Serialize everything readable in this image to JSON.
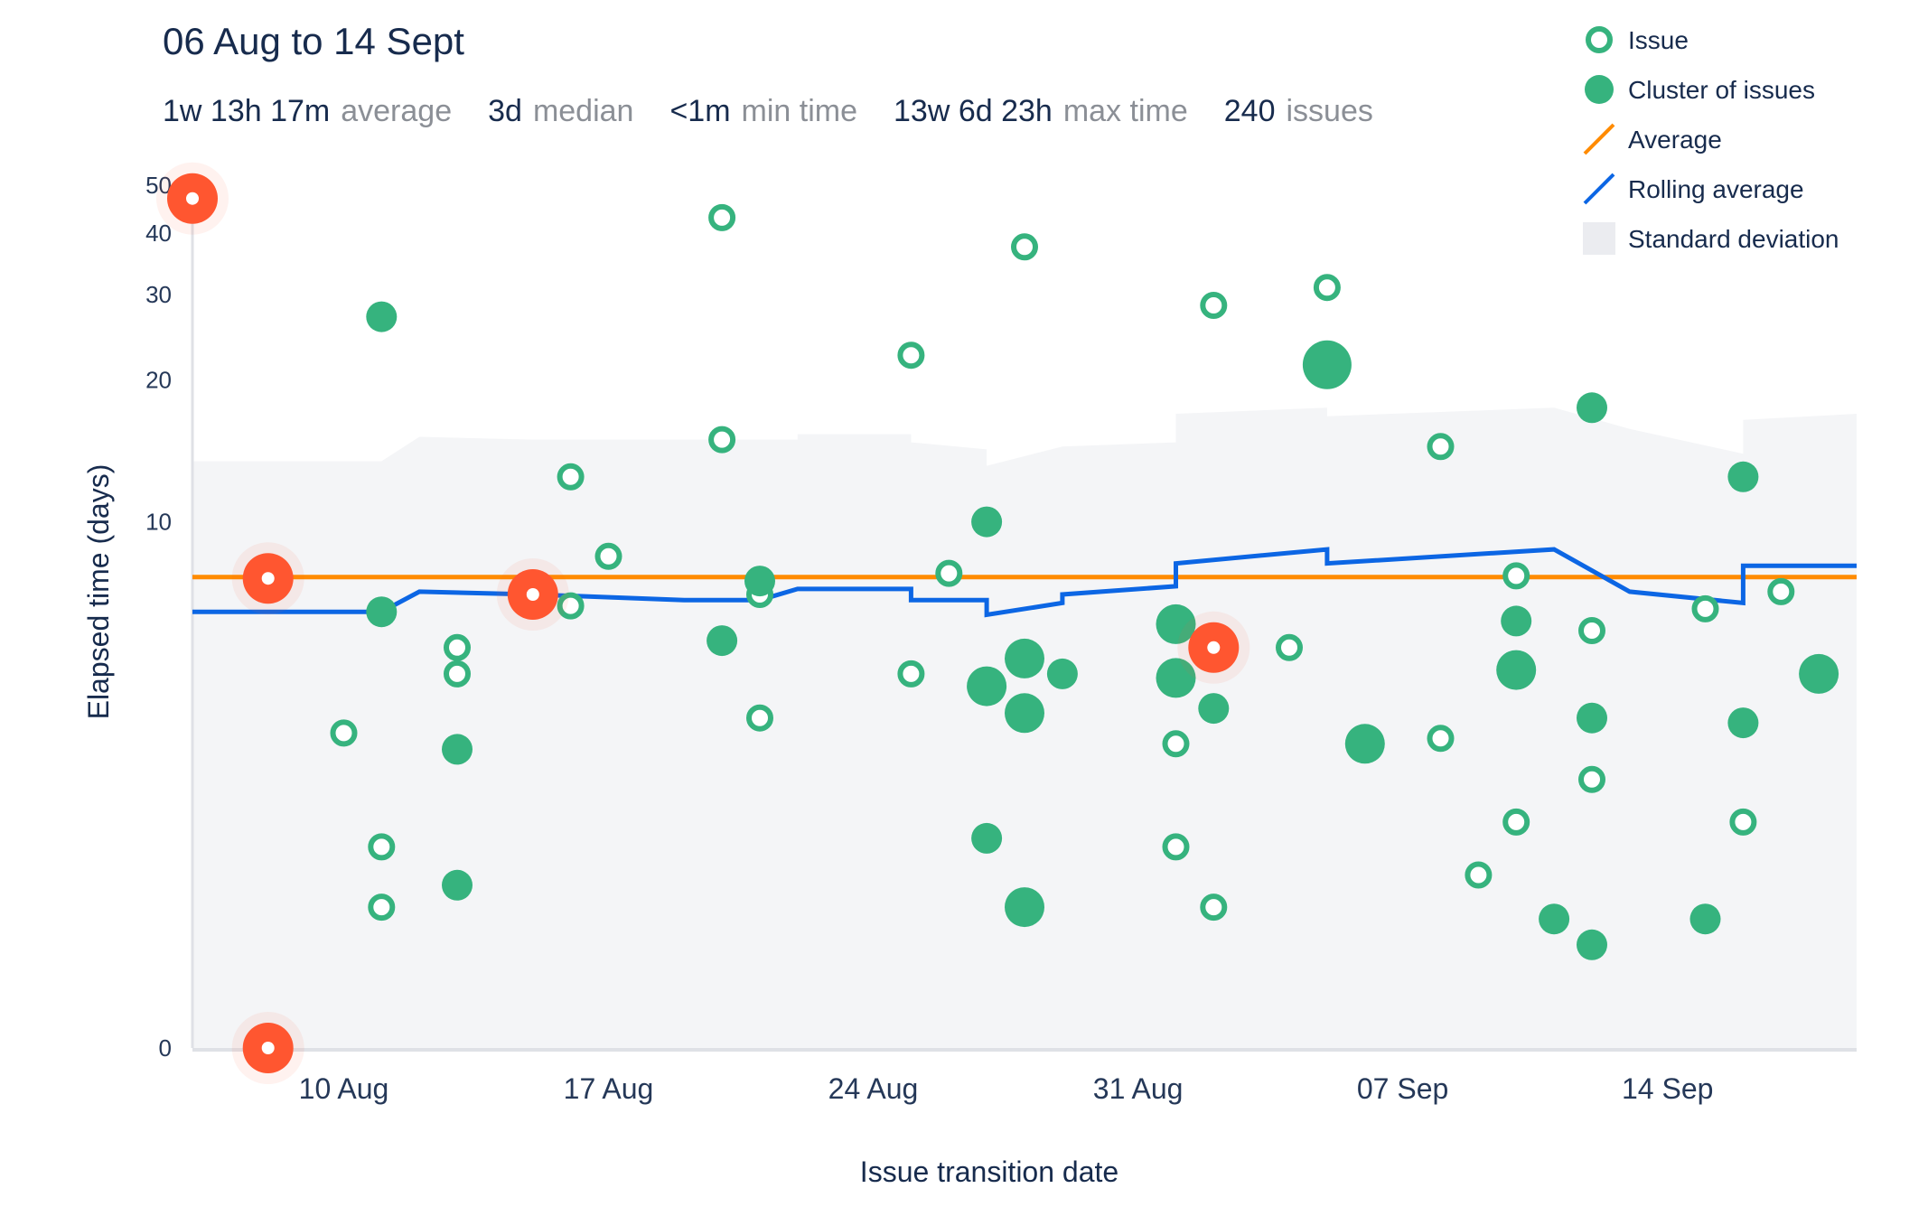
{
  "header": {
    "title": "06 Aug to 14 Sept",
    "stats": [
      {
        "value": "1w 13h 17m",
        "label": "average"
      },
      {
        "value": "3d",
        "label": "median"
      },
      {
        "value": "<1m",
        "label": "min time"
      },
      {
        "value": "13w 6d 23h",
        "label": "max time"
      },
      {
        "value": "240",
        "label": "issues"
      }
    ]
  },
  "legend": {
    "placement": "top-right",
    "items": [
      {
        "label": "Issue",
        "symbol": "issue-ring-icon"
      },
      {
        "label": "Cluster of issues",
        "symbol": "cluster-dot-icon"
      },
      {
        "label": "Average",
        "symbol": "average-line-icon"
      },
      {
        "label": "Rolling average",
        "symbol": "rolling-line-icon"
      },
      {
        "label": "Standard deviation",
        "symbol": "stddev-swatch-icon"
      }
    ]
  },
  "colors": {
    "issue": "#36b37e",
    "average": "#ff8b00",
    "rolling": "#0c66e4",
    "stddev": "#f4f5f7",
    "highlight": "#ff5630",
    "axis": "#dfe1e6"
  },
  "chart_data": {
    "type": "scatter",
    "xlabel": "Issue transition date",
    "ylabel": "Elapsed time (days)",
    "x_ticks": [
      {
        "date": "2023-08-10",
        "label": "10 Aug"
      },
      {
        "date": "2023-08-17",
        "label": "17 Aug"
      },
      {
        "date": "2023-08-24",
        "label": "24 Aug"
      },
      {
        "date": "2023-08-31",
        "label": "31 Aug"
      },
      {
        "date": "2023-09-07",
        "label": "07 Sep"
      },
      {
        "date": "2023-09-14",
        "label": "14 Sep"
      }
    ],
    "xlim": [
      "2023-08-06",
      "2023-09-19"
    ],
    "y_scale": "log",
    "y_ticks": [
      {
        "value": 0,
        "label": "0"
      },
      {
        "value": 10,
        "label": "10"
      },
      {
        "value": 20,
        "label": "20"
      },
      {
        "value": 30,
        "label": "30"
      },
      {
        "value": 40,
        "label": "40"
      },
      {
        "value": 50,
        "label": "50"
      }
    ],
    "ylim": [
      0,
      50
    ],
    "average": 7.55,
    "issues": [
      {
        "date": "2023-08-10",
        "days": 3.2
      },
      {
        "date": "2023-08-11",
        "days": 0.9
      },
      {
        "date": "2023-08-11",
        "days": 1.5
      },
      {
        "date": "2023-08-13",
        "days": 5.2
      },
      {
        "date": "2023-08-13",
        "days": 4.5
      },
      {
        "date": "2023-08-16",
        "days": 12.5
      },
      {
        "date": "2023-08-16",
        "days": 6.5
      },
      {
        "date": "2023-08-17",
        "days": 8.4
      },
      {
        "date": "2023-08-20",
        "days": 43
      },
      {
        "date": "2023-08-20",
        "days": 15
      },
      {
        "date": "2023-08-21",
        "days": 3.5
      },
      {
        "date": "2023-08-21",
        "days": 6.9
      },
      {
        "date": "2023-08-25",
        "days": 22.5
      },
      {
        "date": "2023-08-25",
        "days": 4.5
      },
      {
        "date": "2023-08-26",
        "days": 7.7
      },
      {
        "date": "2023-08-28",
        "days": 37.5
      },
      {
        "date": "2023-09-01",
        "days": 3.0
      },
      {
        "date": "2023-09-01",
        "days": 1.5
      },
      {
        "date": "2023-09-02",
        "days": 0.9
      },
      {
        "date": "2023-09-02",
        "days": 28.5
      },
      {
        "date": "2023-09-04",
        "days": 5.2
      },
      {
        "date": "2023-09-05",
        "days": 31
      },
      {
        "date": "2023-09-08",
        "days": 3.1
      },
      {
        "date": "2023-09-08",
        "days": 14.5
      },
      {
        "date": "2023-09-09",
        "days": 1.2
      },
      {
        "date": "2023-09-10",
        "days": 1.8
      },
      {
        "date": "2023-09-10",
        "days": 7.6
      },
      {
        "date": "2023-09-12",
        "days": 5.7
      },
      {
        "date": "2023-09-12",
        "days": 2.4
      },
      {
        "date": "2023-09-15",
        "days": 6.4
      },
      {
        "date": "2023-09-16",
        "days": 1.8
      },
      {
        "date": "2023-09-17",
        "days": 7.0
      }
    ],
    "clusters": [
      {
        "date": "2023-08-11",
        "days": 27,
        "size": "small"
      },
      {
        "date": "2023-08-11",
        "days": 6.3,
        "size": "small"
      },
      {
        "date": "2023-08-13",
        "days": 2.9,
        "size": "small"
      },
      {
        "date": "2023-08-13",
        "days": 1.1,
        "size": "small"
      },
      {
        "date": "2023-08-20",
        "days": 5.4,
        "size": "small"
      },
      {
        "date": "2023-08-21",
        "days": 7.4,
        "size": "small"
      },
      {
        "date": "2023-08-27",
        "days": 10,
        "size": "small"
      },
      {
        "date": "2023-08-27",
        "days": 4.2,
        "size": "medium"
      },
      {
        "date": "2023-08-27",
        "days": 1.6,
        "size": "small"
      },
      {
        "date": "2023-08-28",
        "days": 4.9,
        "size": "medium"
      },
      {
        "date": "2023-08-28",
        "days": 3.6,
        "size": "medium"
      },
      {
        "date": "2023-08-28",
        "days": 0.9,
        "size": "medium"
      },
      {
        "date": "2023-08-29",
        "days": 4.5,
        "size": "small"
      },
      {
        "date": "2023-09-01",
        "days": 5.9,
        "size": "medium"
      },
      {
        "date": "2023-09-01",
        "days": 4.4,
        "size": "medium"
      },
      {
        "date": "2023-09-02",
        "days": 3.7,
        "size": "small"
      },
      {
        "date": "2023-09-02",
        "days": 5.1,
        "size": "small"
      },
      {
        "date": "2023-09-05",
        "days": 21.5,
        "size": "large"
      },
      {
        "date": "2023-09-06",
        "days": 3.0,
        "size": "medium"
      },
      {
        "date": "2023-09-10",
        "days": 6.0,
        "size": "small"
      },
      {
        "date": "2023-09-10",
        "days": 4.6,
        "size": "medium"
      },
      {
        "date": "2023-09-11",
        "days": 0.8,
        "size": "small"
      },
      {
        "date": "2023-09-12",
        "days": 17.5,
        "size": "small"
      },
      {
        "date": "2023-09-12",
        "days": 3.5,
        "size": "small"
      },
      {
        "date": "2023-09-12",
        "days": 0.6,
        "size": "small"
      },
      {
        "date": "2023-09-15",
        "days": 0.8,
        "size": "small"
      },
      {
        "date": "2023-09-16",
        "days": 12.5,
        "size": "small"
      },
      {
        "date": "2023-09-16",
        "days": 3.4,
        "size": "small"
      },
      {
        "date": "2023-09-18",
        "days": 4.5,
        "size": "medium"
      }
    ],
    "highlighted": [
      {
        "date": "2023-08-06",
        "days": 47
      },
      {
        "date": "2023-08-08",
        "days": 7.5
      },
      {
        "date": "2023-08-08",
        "days": 0
      },
      {
        "date": "2023-08-15",
        "days": 6.9
      },
      {
        "date": "2023-09-02",
        "days": 5.2
      }
    ],
    "rolling_average": [
      {
        "date": "2023-08-06",
        "days": 6.3
      },
      {
        "date": "2023-08-11",
        "days": 6.3
      },
      {
        "date": "2023-08-12",
        "days": 7.0
      },
      {
        "date": "2023-08-15",
        "days": 6.9
      },
      {
        "date": "2023-08-19",
        "days": 6.7
      },
      {
        "date": "2023-08-21",
        "days": 6.7
      },
      {
        "date": "2023-08-22",
        "days": 7.1
      },
      {
        "date": "2023-08-25",
        "days": 7.1
      },
      {
        "date": "2023-08-25",
        "days": 6.7
      },
      {
        "date": "2023-08-27",
        "days": 6.7
      },
      {
        "date": "2023-08-27",
        "days": 6.2
      },
      {
        "date": "2023-08-29",
        "days": 6.6
      },
      {
        "date": "2023-08-29",
        "days": 6.9
      },
      {
        "date": "2023-09-01",
        "days": 7.2
      },
      {
        "date": "2023-09-01",
        "days": 8.1
      },
      {
        "date": "2023-09-05",
        "days": 8.7
      },
      {
        "date": "2023-09-05",
        "days": 8.1
      },
      {
        "date": "2023-09-11",
        "days": 8.7
      },
      {
        "date": "2023-09-13",
        "days": 7.0
      },
      {
        "date": "2023-09-16",
        "days": 6.6
      },
      {
        "date": "2023-09-16",
        "days": 8.0
      },
      {
        "date": "2023-09-19",
        "days": 8.0
      }
    ],
    "stddev_upper": [
      {
        "date": "2023-08-06",
        "days": 13.5
      },
      {
        "date": "2023-08-11",
        "days": 13.5
      },
      {
        "date": "2023-08-12",
        "days": 15.2
      },
      {
        "date": "2023-08-15",
        "days": 15.0
      },
      {
        "date": "2023-08-22",
        "days": 15.0
      },
      {
        "date": "2023-08-22",
        "days": 15.4
      },
      {
        "date": "2023-08-25",
        "days": 15.4
      },
      {
        "date": "2023-08-25",
        "days": 14.8
      },
      {
        "date": "2023-08-27",
        "days": 14.3
      },
      {
        "date": "2023-08-27",
        "days": 13.2
      },
      {
        "date": "2023-08-29",
        "days": 14.5
      },
      {
        "date": "2023-09-01",
        "days": 14.8
      },
      {
        "date": "2023-09-01",
        "days": 17.0
      },
      {
        "date": "2023-09-05",
        "days": 17.5
      },
      {
        "date": "2023-09-05",
        "days": 16.8
      },
      {
        "date": "2023-09-11",
        "days": 17.5
      },
      {
        "date": "2023-09-13",
        "days": 15.8
      },
      {
        "date": "2023-09-16",
        "days": 14.0
      },
      {
        "date": "2023-09-16",
        "days": 16.5
      },
      {
        "date": "2023-09-19",
        "days": 17.0
      }
    ]
  }
}
